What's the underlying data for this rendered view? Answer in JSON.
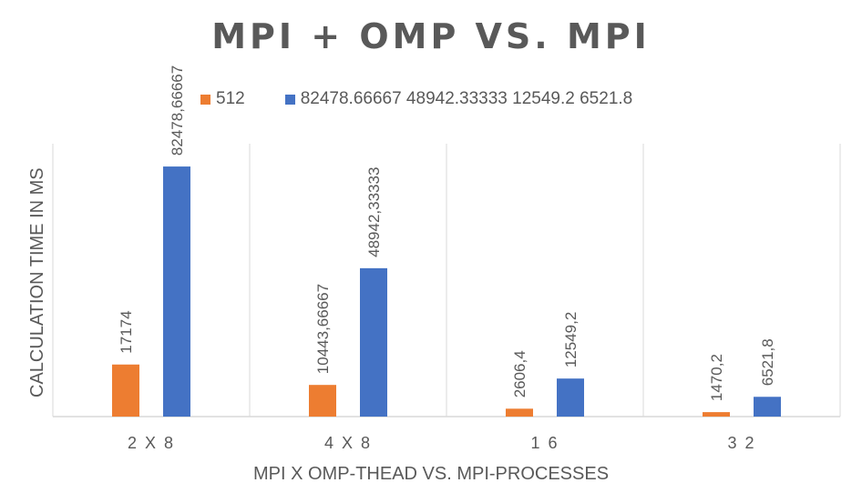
{
  "chart_data": {
    "type": "bar",
    "title": "MPI + OMP VS. MPI",
    "xlabel": "MPI X OMP-THEAD VS. MPI-PROCESSES",
    "ylabel": "CALCULATION TIME IN MS",
    "categories": [
      "2 X 8",
      "4 X 8",
      "1 6",
      "3 2"
    ],
    "ylim": [
      0,
      90000
    ],
    "grid": "vertical category separators",
    "legend_position": "top",
    "series": [
      {
        "name": "512",
        "color": "#ED7D31",
        "values": [
          17174,
          10443.66667,
          2606.4,
          1470.2
        ],
        "labels": [
          "17174",
          "10443,66667",
          "2606,4",
          "1470,2"
        ]
      },
      {
        "name": "82478.66667 48942.33333 12549.2 6521.8",
        "color": "#4472C4",
        "values": [
          82478.66667,
          48942.33333,
          12549.2,
          6521.8
        ],
        "labels": [
          "82478,66667",
          "48942,33333",
          "12549,2",
          "6521,8"
        ]
      }
    ]
  }
}
